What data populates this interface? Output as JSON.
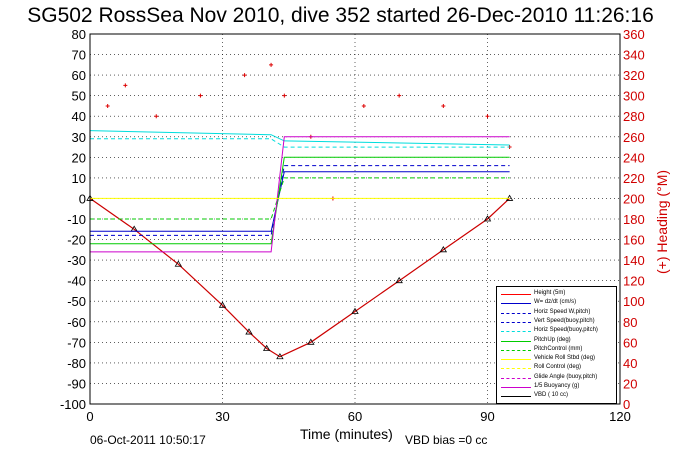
{
  "chart_data": {
    "type": "line",
    "title": "SG502 RossSea Nov 2010, dive 352 started 26-Dec-2010 11:26:16",
    "xlabel": "Time (minutes)",
    "ylabel_right": "(+) Heading (°M)",
    "xlim": [
      0,
      120
    ],
    "ylim_left": [
      -100,
      80
    ],
    "ylim_right": [
      0,
      360
    ],
    "xticks": [
      0,
      30,
      60,
      90,
      120
    ],
    "yticks_left": [
      80,
      70,
      60,
      50,
      40,
      30,
      20,
      10,
      0,
      -10,
      -20,
      -30,
      -40,
      -50,
      -60,
      -70,
      -80,
      -90,
      -100
    ],
    "yticks_right": [
      360,
      340,
      320,
      300,
      280,
      260,
      240,
      220,
      200,
      180,
      160,
      140,
      120,
      100,
      80,
      60,
      40,
      20,
      0
    ],
    "grid": true,
    "legend_position": "bottom-right",
    "series": [
      {
        "name": "Height (5m)",
        "color": "#ff0000",
        "style": "solid"
      },
      {
        "name": "W= dz/dt (cm/s)",
        "color": "#0000cc",
        "style": "solid"
      },
      {
        "name": "Horiz Speed W,pitch)",
        "color": "#0000cc",
        "style": "dashed"
      },
      {
        "name": "Vert Speed(buoy,pitch)",
        "color": "#0000cc",
        "style": "dashed"
      },
      {
        "name": "Horiz Speed(buoy,pitch)",
        "color": "#00dddd",
        "style": "dashed"
      },
      {
        "name": "PitchUp (deg)",
        "color": "#00cc00",
        "style": "solid"
      },
      {
        "name": "PitchControl (mm)",
        "color": "#00cc00",
        "style": "dashed"
      },
      {
        "name": "Vehicle Roll Stbd (deg)",
        "color": "#ffff00",
        "style": "solid"
      },
      {
        "name": "Roll Control (deg)",
        "color": "#ffff00",
        "style": "dashed"
      },
      {
        "name": "Glide Angle (buoy,pitch)",
        "color": "#cc00cc",
        "style": "dashed"
      },
      {
        "name": "1/5 Buoyancy (g)",
        "color": "#cc00cc",
        "style": "solid"
      },
      {
        "name": "VBD ( 10 cc)",
        "color": "#000000",
        "style": "solid"
      }
    ],
    "depth_profile": {
      "x": [
        0,
        10,
        20,
        30,
        36,
        40,
        43,
        50,
        60,
        70,
        80,
        90,
        95
      ],
      "y": [
        0,
        -15,
        -32,
        -52,
        -65,
        -73,
        -77,
        -70,
        -55,
        -40,
        -25,
        -10,
        0
      ]
    },
    "heading_deg": {
      "x": [
        4,
        8,
        15,
        25,
        35,
        41,
        44,
        50,
        55,
        62,
        70,
        80,
        90,
        95
      ],
      "y": [
        290,
        310,
        280,
        300,
        320,
        330,
        300,
        260,
        200,
        290,
        300,
        290,
        280,
        250
      ]
    }
  },
  "footer": {
    "date": "06-Oct-2011 10:50:17",
    "vbd_bias": "VBD bias =0 cc"
  }
}
